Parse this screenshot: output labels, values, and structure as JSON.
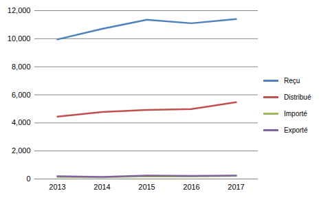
{
  "chart_data": {
    "type": "line",
    "categories": [
      "2013",
      "2014",
      "2015",
      "2016",
      "2017"
    ],
    "series": [
      {
        "name": "Reçu",
        "color": "#4f81bd",
        "values": [
          9950,
          10700,
          11350,
          11100,
          11400
        ]
      },
      {
        "name": "Distribué",
        "color": "#c0504d",
        "values": [
          4450,
          4780,
          4920,
          4980,
          5470
        ]
      },
      {
        "name": "Importé",
        "color": "#9bbb59",
        "values": [
          150,
          120,
          200,
          180,
          220
        ]
      },
      {
        "name": "Exporté",
        "color": "#8064a2",
        "values": [
          200,
          150,
          250,
          220,
          250
        ]
      }
    ],
    "ylim": [
      0,
      12000
    ],
    "yticks": [
      0,
      2000,
      4000,
      6000,
      8000,
      10000,
      12000
    ],
    "grid": true,
    "legend": "right"
  }
}
